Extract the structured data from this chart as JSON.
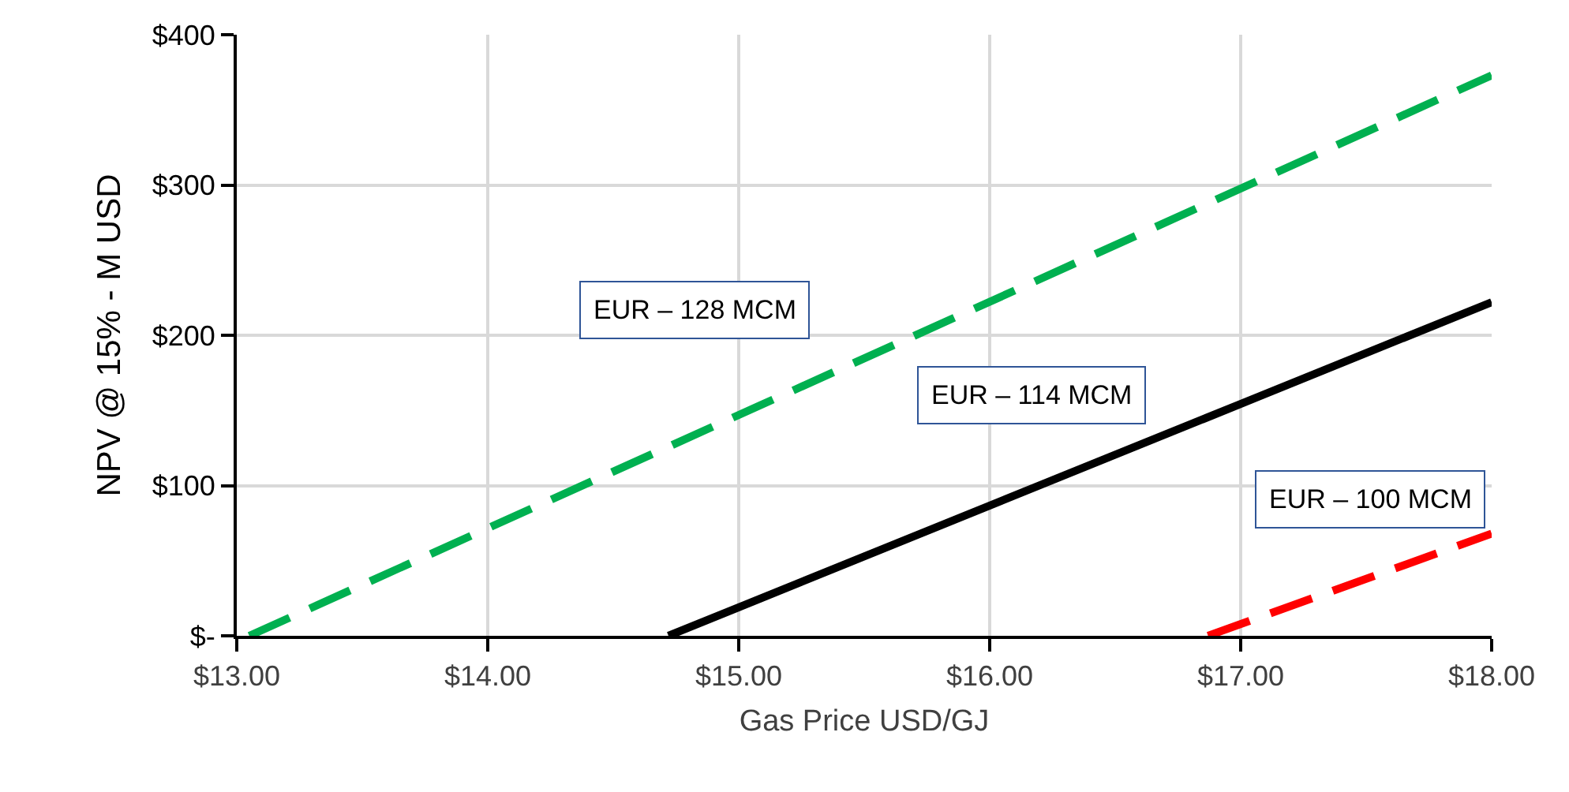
{
  "chart_data": {
    "type": "line",
    "xlabel": "Gas Price USD/GJ",
    "ylabel": "NPV @ 15% - M USD",
    "xlim": [
      13,
      18
    ],
    "ylim": [
      0,
      400
    ],
    "xticks": [
      {
        "value": 13,
        "label": "$13.00"
      },
      {
        "value": 14,
        "label": "$14.00"
      },
      {
        "value": 15,
        "label": "$15.00"
      },
      {
        "value": 16,
        "label": "$16.00"
      },
      {
        "value": 17,
        "label": "$17.00"
      },
      {
        "value": 18,
        "label": "$18.00"
      }
    ],
    "yticks": [
      {
        "value": 0,
        "label": "$-"
      },
      {
        "value": 100,
        "label": "$100"
      },
      {
        "value": 200,
        "label": "$200"
      },
      {
        "value": 300,
        "label": "$300"
      },
      {
        "value": 400,
        "label": "$400"
      }
    ],
    "grid": true,
    "legend": false,
    "marker": "none",
    "series": [
      {
        "name": "EUR – 128 MCM",
        "color": "#00b050",
        "line_style": "dashed",
        "x": [
          13.05,
          18
        ],
        "values": [
          0,
          373
        ]
      },
      {
        "name": "EUR – 114 MCM",
        "color": "#000000",
        "line_style": "solid",
        "x": [
          14.72,
          18
        ],
        "values": [
          0,
          222
        ]
      },
      {
        "name": "EUR – 100 MCM",
        "color": "#ff0000",
        "line_style": "dashed",
        "x": [
          16.87,
          18
        ],
        "values": [
          0,
          68
        ]
      }
    ]
  }
}
